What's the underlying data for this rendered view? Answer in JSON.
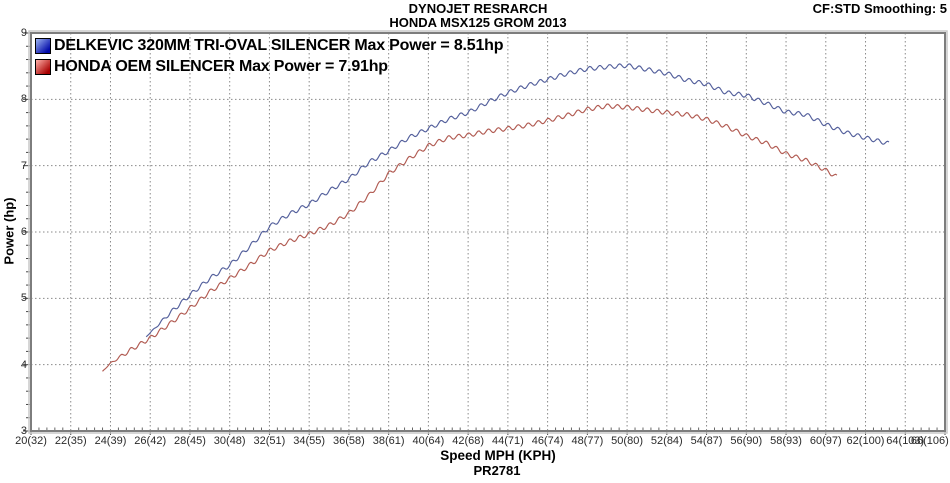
{
  "header": {
    "line1": "DYNOJET RESRARCH",
    "line2": "HONDA MSX125 GROM 2013",
    "right": "CF:STD Smoothing: 5"
  },
  "legend": {
    "items": [
      {
        "label": "DELKEVIC 320MM TRI-OVAL SILENCER  Max Power = 8.51hp",
        "color": "#54609c",
        "swatch_light": "#9db4f2",
        "swatch_dark": "#0008a8"
      },
      {
        "label": "HONDA OEM SILENCER Max Power = 7.91hp",
        "color": "#b15b52",
        "swatch_light": "#ffb0a8",
        "swatch_dark": "#a80000"
      }
    ]
  },
  "axes": {
    "x_label": "Speed MPH (KPH)",
    "y_label": "Power (hp)",
    "footer": "PR2781",
    "x_ticks": [
      "20(32)",
      "22(35)",
      "24(39)",
      "26(42)",
      "28(45)",
      "30(48)",
      "32(51)",
      "34(55)",
      "36(58)",
      "38(61)",
      "40(64)",
      "42(68)",
      "44(71)",
      "46(74)",
      "48(77)",
      "50(80)",
      "52(84)",
      "54(87)",
      "56(90)",
      "58(93)",
      "60(97)",
      "62(100)",
      "64(103)",
      "66(106)"
    ],
    "y_ticks": [
      "3",
      "4",
      "5",
      "6",
      "7",
      "8",
      "9"
    ]
  },
  "chart_data": {
    "type": "line",
    "title": "HONDA MSX125 GROM 2013",
    "subtitle": "DYNOJET RESRARCH",
    "xlabel": "Speed MPH (KPH)",
    "ylabel": "Power (hp)",
    "xlim": [
      20,
      66
    ],
    "ylim": [
      3,
      9
    ],
    "x_major_step_mph": 2,
    "y_major_step_hp": 1,
    "grid": "dotted both axes at major ticks",
    "legend_position": "top-left inside plot",
    "smoothing_note": "CF:STD Smoothing: 5",
    "run_id": "PR2781",
    "ripple": {
      "amplitude_hp": 0.032,
      "wavelength_mph": 0.5
    },
    "series": [
      {
        "name": "DELKEVIC 320MM TRI-OVAL SILENCER",
        "max_power_hp": 8.51,
        "color": "#54609c",
        "points": [
          [
            25.8,
            4.42
          ],
          [
            26.5,
            4.63
          ],
          [
            27,
            4.78
          ],
          [
            28,
            5.05
          ],
          [
            29,
            5.3
          ],
          [
            30,
            5.5
          ],
          [
            31,
            5.78
          ],
          [
            32,
            6.08
          ],
          [
            33,
            6.27
          ],
          [
            34,
            6.42
          ],
          [
            35,
            6.62
          ],
          [
            36,
            6.8
          ],
          [
            37,
            7.05
          ],
          [
            38,
            7.22
          ],
          [
            39,
            7.42
          ],
          [
            40,
            7.56
          ],
          [
            41,
            7.7
          ],
          [
            42,
            7.8
          ],
          [
            43,
            7.96
          ],
          [
            44,
            8.1
          ],
          [
            45,
            8.21
          ],
          [
            46,
            8.3
          ],
          [
            47,
            8.39
          ],
          [
            48,
            8.46
          ],
          [
            49,
            8.49
          ],
          [
            50,
            8.51
          ],
          [
            51,
            8.45
          ],
          [
            52,
            8.39
          ],
          [
            53,
            8.29
          ],
          [
            54,
            8.23
          ],
          [
            55,
            8.1
          ],
          [
            56,
            8.06
          ],
          [
            57,
            7.94
          ],
          [
            58,
            7.81
          ],
          [
            59,
            7.77
          ],
          [
            60,
            7.62
          ],
          [
            61,
            7.5
          ],
          [
            62,
            7.42
          ],
          [
            63.2,
            7.33
          ]
        ]
      },
      {
        "name": "HONDA OEM SILENCER",
        "max_power_hp": 7.91,
        "color": "#b15b52",
        "points": [
          [
            23.6,
            3.9
          ],
          [
            24,
            4.02
          ],
          [
            25,
            4.22
          ],
          [
            26,
            4.4
          ],
          [
            27,
            4.62
          ],
          [
            28,
            4.85
          ],
          [
            29,
            5.1
          ],
          [
            30,
            5.3
          ],
          [
            31,
            5.5
          ],
          [
            32,
            5.72
          ],
          [
            33,
            5.86
          ],
          [
            34,
            5.97
          ],
          [
            35,
            6.1
          ],
          [
            36,
            6.28
          ],
          [
            37,
            6.55
          ],
          [
            38,
            6.88
          ],
          [
            39,
            7.1
          ],
          [
            40,
            7.3
          ],
          [
            41,
            7.42
          ],
          [
            42,
            7.46
          ],
          [
            43,
            7.52
          ],
          [
            44,
            7.56
          ],
          [
            45,
            7.61
          ],
          [
            46,
            7.68
          ],
          [
            47,
            7.76
          ],
          [
            48,
            7.85
          ],
          [
            49,
            7.9
          ],
          [
            50,
            7.88
          ],
          [
            51,
            7.84
          ],
          [
            52,
            7.8
          ],
          [
            53,
            7.77
          ],
          [
            54,
            7.7
          ],
          [
            55,
            7.59
          ],
          [
            56,
            7.45
          ],
          [
            57,
            7.34
          ],
          [
            58,
            7.18
          ],
          [
            59,
            7.08
          ],
          [
            60,
            6.93
          ],
          [
            60.6,
            6.82
          ]
        ]
      }
    ]
  },
  "colors": {
    "background": "#ffffff",
    "grid": "#8a8a8a",
    "frame": "#7d7d7d",
    "frame_highlight": "#c9c9c9",
    "text": "#000000"
  }
}
